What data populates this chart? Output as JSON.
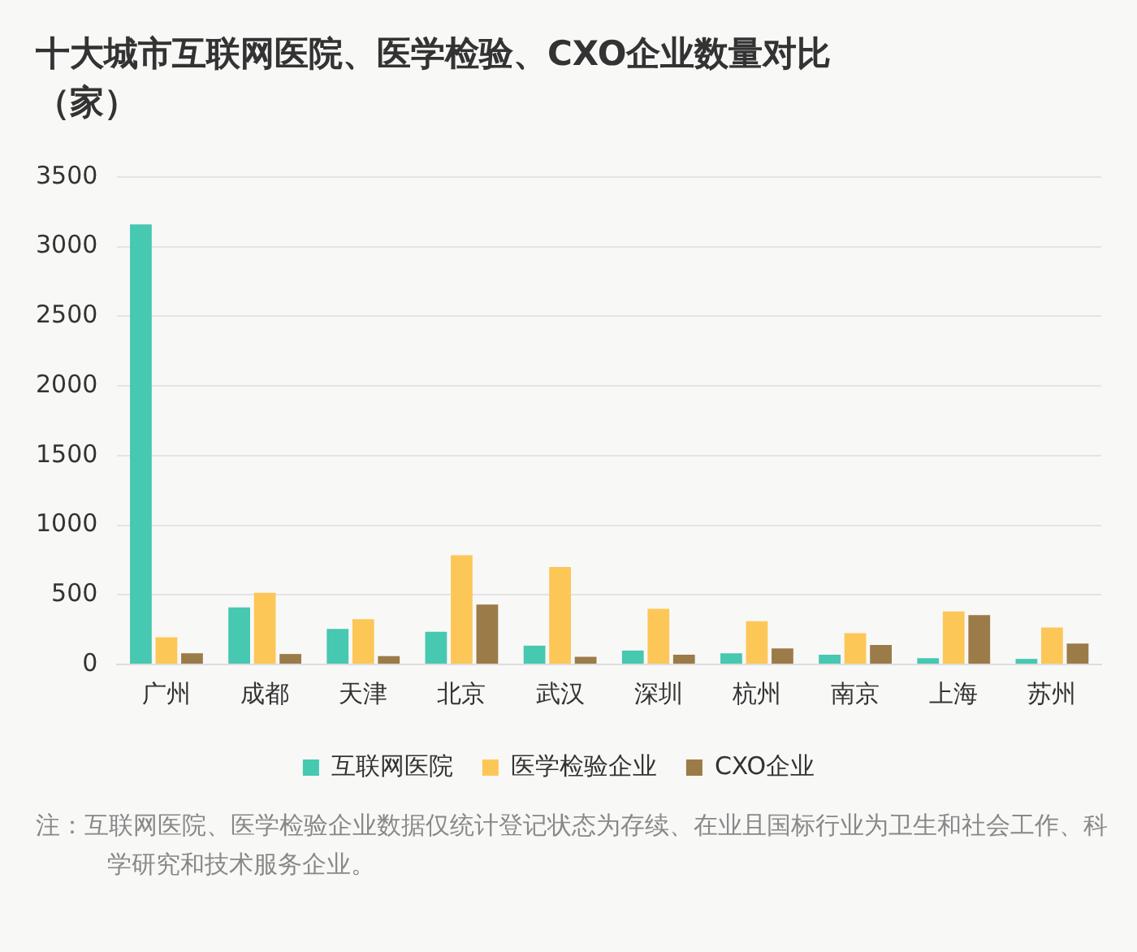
{
  "chart_data": {
    "type": "bar",
    "title": "十大城市互联网医院、医学检验、CXO企业数量对比（家）",
    "categories": [
      "广州",
      "成都",
      "天津",
      "北京",
      "武汉",
      "深圳",
      "杭州",
      "南京",
      "上海",
      "苏州"
    ],
    "series": [
      {
        "name": "互联网医院",
        "color": "#47c8b0",
        "values": [
          3160,
          410,
          255,
          235,
          135,
          100,
          80,
          70,
          45,
          40
        ]
      },
      {
        "name": "医学检验企业",
        "color": "#fdc757",
        "values": [
          195,
          515,
          325,
          785,
          700,
          400,
          310,
          225,
          380,
          265
        ]
      },
      {
        "name": "CXO企业",
        "color": "#9b7b48",
        "values": [
          80,
          75,
          60,
          430,
          55,
          70,
          115,
          140,
          355,
          150
        ]
      }
    ],
    "ylim": [
      0,
      3500
    ],
    "yticks": [
      0,
      500,
      1000,
      1500,
      2000,
      2500,
      3000,
      3500
    ],
    "grid": "y",
    "legend": "bottom",
    "annotations": [
      "注：互联网医院、医学检验企业数据仅统计登记状态为存续、在业且国标行业为卫生和社会工作、科学研究和技术服务企业。"
    ]
  }
}
